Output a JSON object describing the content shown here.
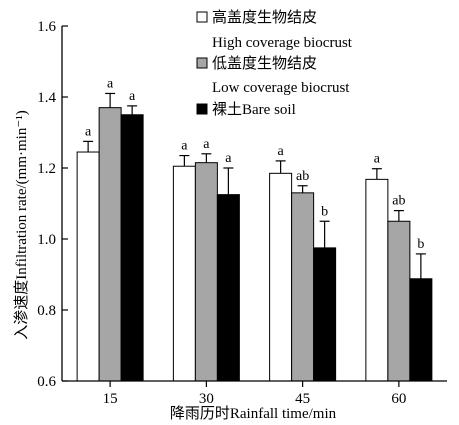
{
  "chart_data": {
    "type": "bar",
    "xlabel": "降雨历时Rainfall time/min",
    "ylabel": "入渗速度Infiltration rate/(mm·min⁻¹)",
    "categories": [
      "15",
      "30",
      "45",
      "60"
    ],
    "ylim": [
      0.6,
      1.6
    ],
    "yticks": [
      "0.6",
      "0.8",
      "1.0",
      "1.2",
      "1.4",
      "1.6"
    ],
    "legend_position": "top-right",
    "series": [
      {
        "name_cn": "高盖度生物结皮",
        "name_en": "High coverage biocrust",
        "color": "#ffffff",
        "values": [
          1.245,
          1.205,
          1.185,
          1.168
        ],
        "errors": [
          0.03,
          0.03,
          0.035,
          0.03
        ],
        "labels": [
          "a",
          "a",
          "a",
          "a"
        ]
      },
      {
        "name_cn": "低盖度生物结皮",
        "name_en": "Low coverage biocrust",
        "color": "#a6a6a6",
        "values": [
          1.37,
          1.215,
          1.13,
          1.05
        ],
        "errors": [
          0.04,
          0.025,
          0.02,
          0.03
        ],
        "labels": [
          "a",
          "a",
          "ab",
          "ab"
        ]
      },
      {
        "name_cn": "裸土",
        "name_en": "Bare soil",
        "color": "#000000",
        "values": [
          1.35,
          1.125,
          0.975,
          0.888
        ],
        "errors": [
          0.025,
          0.075,
          0.075,
          0.07
        ],
        "labels": [
          "a",
          "a",
          "b",
          "b"
        ]
      }
    ]
  }
}
